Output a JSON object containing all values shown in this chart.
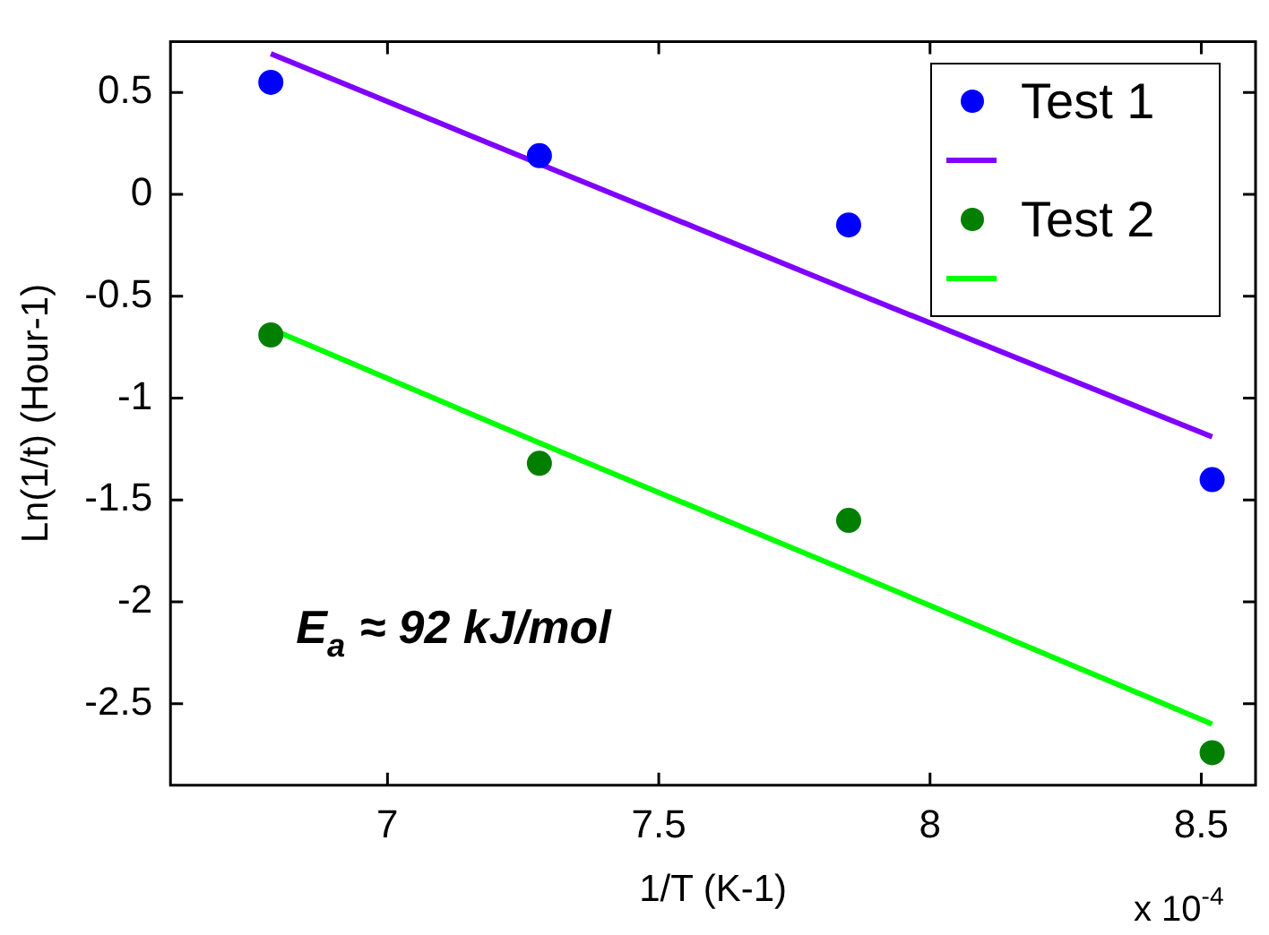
{
  "chart_data": {
    "type": "scatter",
    "xlabel": "1/T (K-1)",
    "ylabel": "Ln(1/t) (Hour-1)",
    "x": [
      6.785,
      7.28,
      7.85,
      8.52
    ],
    "series": [
      {
        "name": "Test 1",
        "color": "#0000ff",
        "values": [
          0.55,
          0.19,
          -0.15,
          -1.4
        ],
        "marker": "circle"
      },
      {
        "type": "line",
        "color": "#7f00ff",
        "values": [
          0.69,
          0.15,
          -0.47,
          -1.19
        ],
        "marker": "none"
      },
      {
        "name": "Test 2",
        "color": "#007f00",
        "values": [
          -0.69,
          -1.32,
          -1.6,
          -2.74
        ],
        "marker": "circle"
      },
      {
        "type": "line",
        "color": "#00ff00",
        "values": [
          -0.66,
          -1.22,
          -1.85,
          -2.6
        ],
        "marker": "none"
      }
    ],
    "xlim": [
      6.6,
      8.6
    ],
    "xticks": [
      7,
      7.5,
      8,
      8.5
    ],
    "ylim": [
      -2.9,
      0.75
    ],
    "yticks": [
      -2.5,
      -2,
      -1.5,
      -1,
      -0.5,
      0,
      0.5
    ],
    "legend": "top right",
    "annotations": [
      "E$_{a}$ ≈ 92 kJ/mol",
      "x 10$^{-4}$"
    ]
  }
}
